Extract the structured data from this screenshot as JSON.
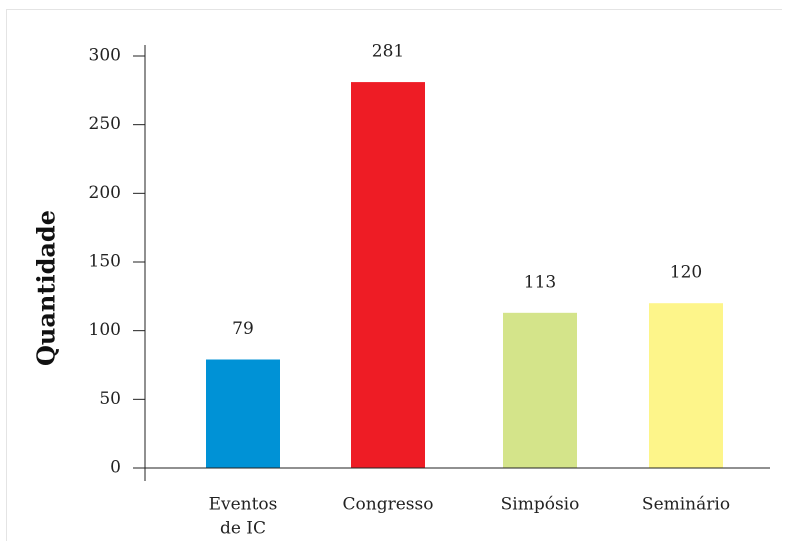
{
  "chart_data": {
    "type": "bar",
    "categories": [
      "Eventos de IC",
      "Congresso",
      "Simpósio",
      "Seminário"
    ],
    "category_lines": [
      [
        "Eventos",
        "de IC"
      ],
      [
        "Congresso"
      ],
      [
        "Simpósio"
      ],
      [
        "Seminário"
      ]
    ],
    "values": [
      79,
      281,
      113,
      120
    ],
    "value_labels": [
      "79",
      "281",
      "113",
      "120"
    ],
    "colors": [
      "#0092d6",
      "#ee1c25",
      "#d4e48a",
      "#fdf58a"
    ],
    "title": "",
    "xlabel": "",
    "ylabel": "Quantidade",
    "ylim": [
      0,
      300
    ],
    "yticks": [
      0,
      50,
      100,
      150,
      200,
      250,
      300
    ],
    "grid": false,
    "legend": "none"
  }
}
